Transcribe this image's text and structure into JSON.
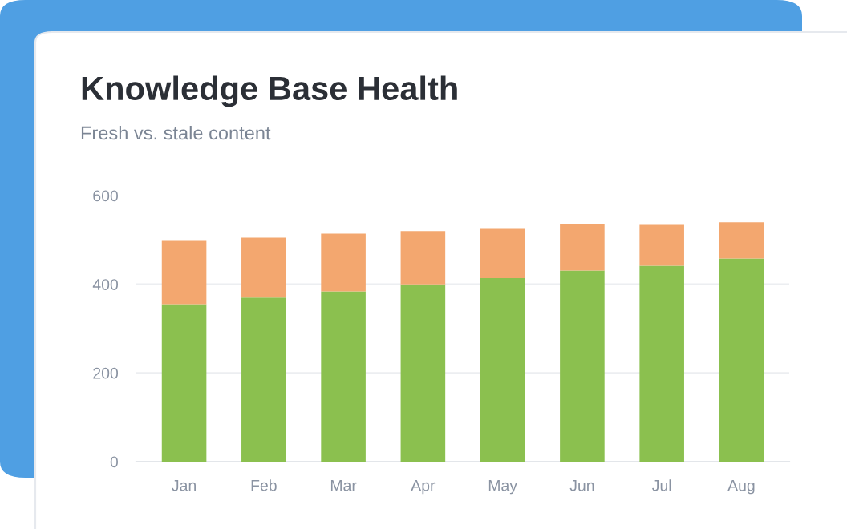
{
  "chart_data": {
    "type": "bar",
    "title": "Knowledge Base Health",
    "subtitle": "Fresh vs. stale content",
    "categories": [
      "Jan",
      "Feb",
      "Mar",
      "Apr",
      "May",
      "Jun",
      "Jul",
      "Aug"
    ],
    "stacked": true,
    "series": [
      {
        "color": "#8bc04f",
        "values": [
          355,
          370,
          384,
          400,
          414,
          431,
          442,
          458
        ]
      },
      {
        "color": "#f3a76f",
        "values": [
          143,
          135,
          130,
          120,
          111,
          104,
          92,
          82
        ]
      }
    ],
    "ylim": [
      0,
      600
    ],
    "yticks": [
      0,
      200,
      400,
      600
    ],
    "grid": "y",
    "legend": false
  }
}
